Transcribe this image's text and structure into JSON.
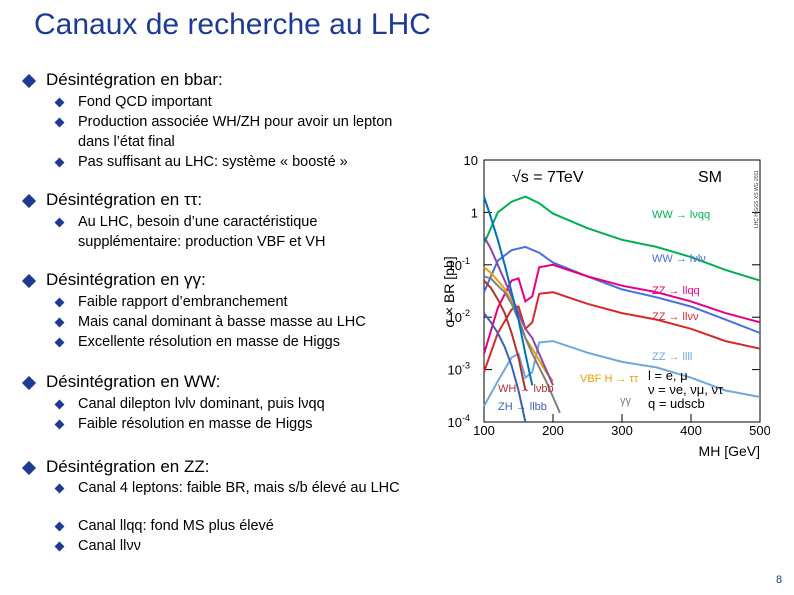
{
  "slide": {
    "title": "Canaux de recherche au LHC",
    "page_number": "8",
    "sections": [
      {
        "heading": "Désintégration en bbar:",
        "items": [
          "Fond QCD important",
          "Production associée WH/ZH pour avoir un lepton dans l’état final",
          "Pas suffisant au LHC: système « boosté »"
        ]
      },
      {
        "heading": "Désintégration en ττ:",
        "items": [
          "Au LHC, besoin d’une caractéristique supplémentaire: production VBF et VH"
        ]
      },
      {
        "heading": "Désintégration en γγ:",
        "items": [
          "Faible rapport d’embranchement",
          "Mais canal dominant à basse masse au LHC",
          "Excellente résolution en masse de Higgs"
        ]
      },
      {
        "heading": "Désintégration en WW:",
        "items": [
          "Canal dilepton lνlν dominant, puis lνqq",
          "Faible résolution en masse de Higgs"
        ]
      },
      {
        "heading": "Désintégration en ZZ:",
        "items": [
          "Canal 4 leptons: faible BR, mais s/b élevé au LHC",
          "Canal llqq: fond MS plus élevé",
          "Canal llνν"
        ]
      }
    ]
  },
  "chart_data": {
    "type": "line",
    "ylabel": "σ × BR [pb]",
    "xlabel": "MH [GeV]",
    "x_ticks": [
      "100",
      "200",
      "300",
      "400",
      "500"
    ],
    "y_ticks": [
      "10",
      "1",
      "10-1",
      "10-2",
      "10-3",
      "10-4"
    ],
    "xlim": [
      100,
      500
    ],
    "ylim_log10": [
      -4,
      1
    ],
    "watermark": "LHC HIGGS XS WG 2011",
    "annotations": {
      "energy": "√s = 7TeV",
      "model": "SM",
      "legend_l": "l = e, μ",
      "legend_nu": "ν = νe, νμ, ντ",
      "legend_q": "q = udscb"
    },
    "series": [
      {
        "name": "WW → lνqq",
        "color": "#00b050",
        "x": [
          100,
          120,
          140,
          160,
          180,
          200,
          250,
          300,
          350,
          400,
          450,
          500
        ],
        "y": [
          0.25,
          1.0,
          1.6,
          2.0,
          1.5,
          0.95,
          0.5,
          0.3,
          0.22,
          0.14,
          0.08,
          0.05
        ]
      },
      {
        "name": "WW → lνlν",
        "color": "#4a6de0",
        "x": [
          100,
          120,
          140,
          160,
          180,
          200,
          250,
          300,
          350,
          400,
          450,
          500
        ],
        "y": [
          0.03,
          0.12,
          0.19,
          0.22,
          0.17,
          0.11,
          0.06,
          0.034,
          0.024,
          0.016,
          0.009,
          0.005
        ]
      },
      {
        "name": "ZZ → llqq",
        "color": "#e6007e",
        "x": [
          100,
          120,
          140,
          150,
          160,
          170,
          180,
          200,
          250,
          300,
          350,
          400,
          450,
          500
        ],
        "y": [
          0.002,
          0.015,
          0.05,
          0.055,
          0.02,
          0.025,
          0.09,
          0.1,
          0.06,
          0.04,
          0.03,
          0.02,
          0.012,
          0.008
        ]
      },
      {
        "name": "ZZ → llνν",
        "color": "#d62a2a",
        "x": [
          100,
          120,
          140,
          150,
          160,
          170,
          180,
          200,
          250,
          300,
          350,
          400,
          450,
          500
        ],
        "y": [
          0.0009,
          0.005,
          0.014,
          0.016,
          0.006,
          0.008,
          0.028,
          0.03,
          0.018,
          0.012,
          0.009,
          0.006,
          0.0035,
          0.0025
        ]
      },
      {
        "name": "ZZ → llll",
        "color": "#6fa8dc",
        "x": [
          100,
          120,
          140,
          150,
          160,
          170,
          180,
          200,
          250,
          300,
          350,
          400,
          450,
          500
        ],
        "y": [
          0.0002,
          0.0006,
          0.0017,
          0.002,
          0.0007,
          0.0009,
          0.0033,
          0.0035,
          0.0021,
          0.0014,
          0.0011,
          0.0007,
          0.0004,
          0.0003
        ]
      },
      {
        "name": "WH → lνbb",
        "color": "#b03030",
        "x": [
          100,
          110,
          120,
          130,
          140,
          150,
          160
        ],
        "y": [
          0.05,
          0.036,
          0.022,
          0.012,
          0.005,
          0.0017,
          0.0004
        ]
      },
      {
        "name": "ZH → llbb",
        "color": "#3f5fb5",
        "x": [
          100,
          110,
          120,
          130,
          140,
          150,
          160
        ],
        "y": [
          0.012,
          0.008,
          0.005,
          0.0027,
          0.0012,
          0.0004,
          0.0001
        ]
      },
      {
        "name": "VBF H → ττ",
        "color": "#e8a000",
        "x": [
          100,
          110,
          120,
          130,
          140,
          150,
          160,
          170,
          180,
          190,
          200
        ],
        "y": [
          0.09,
          0.07,
          0.05,
          0.035,
          0.02,
          0.01,
          0.004,
          0.0025,
          0.0015,
          0.0009,
          0.0006
        ]
      },
      {
        "name": "γγ",
        "color": "#7f7f7f",
        "x": [
          100,
          110,
          120,
          130,
          140,
          150,
          160,
          170,
          180,
          190,
          200,
          210
        ],
        "y": [
          0.06,
          0.055,
          0.04,
          0.03,
          0.018,
          0.009,
          0.004,
          0.002,
          0.0011,
          0.0006,
          0.0003,
          0.00015
        ]
      },
      {
        "name": "",
        "color": "#8e44ad",
        "x": [
          100,
          110,
          120,
          130,
          140,
          150,
          160,
          170,
          180,
          190,
          200
        ],
        "y": [
          0.35,
          0.2,
          0.1,
          0.05,
          0.025,
          0.012,
          0.006,
          0.004,
          0.002,
          0.001,
          0.0005
        ]
      },
      {
        "name": "",
        "color": "#0070c0",
        "x": [
          100,
          110,
          120,
          130,
          140,
          150,
          160,
          170
        ],
        "y": [
          2.0,
          0.8,
          0.3,
          0.1,
          0.03,
          0.009,
          0.002,
          0.0005
        ]
      }
    ]
  }
}
